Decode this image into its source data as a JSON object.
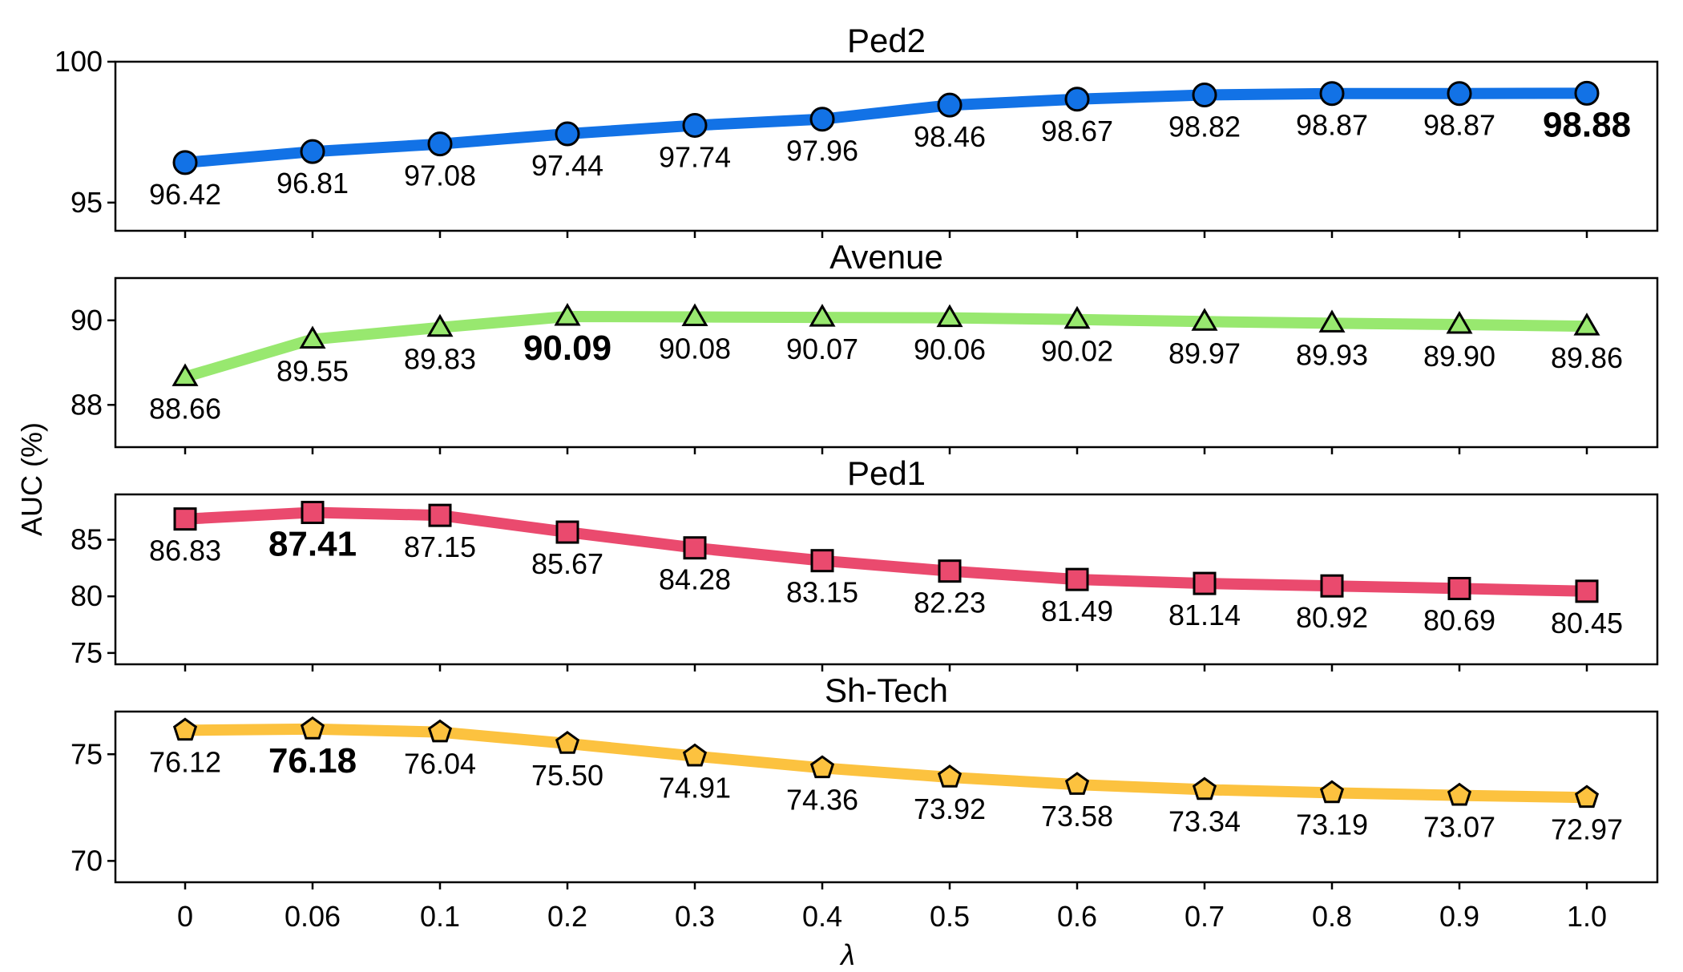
{
  "chart_data": {
    "type": "line",
    "xlabel": "λ",
    "ylabel": "AUC (%)",
    "x_tick_labels": [
      "0",
      "0.06",
      "0.1",
      "0.2",
      "0.3",
      "0.4",
      "0.5",
      "0.6",
      "0.7",
      "0.8",
      "0.9",
      "1.0"
    ],
    "panels": [
      {
        "title": "Ped2",
        "color": "#1272e6",
        "marker": "circle",
        "marker_color": "#1272e6",
        "ylim": [
          94,
          100
        ],
        "yticks": [
          95,
          100
        ],
        "values": [
          96.42,
          96.81,
          97.08,
          97.44,
          97.74,
          97.96,
          98.46,
          98.67,
          98.82,
          98.87,
          98.87,
          98.88
        ],
        "labels": [
          "96.42",
          "96.81",
          "97.08",
          "97.44",
          "97.74",
          "97.96",
          "98.46",
          "98.67",
          "98.82",
          "98.87",
          "98.87",
          "98.88"
        ],
        "best_index": 11
      },
      {
        "title": "Avenue",
        "color": "#98e86f",
        "marker": "triangle",
        "marker_color": "#98e86f",
        "ylim": [
          87,
          91
        ],
        "yticks": [
          88,
          90
        ],
        "values": [
          88.66,
          89.55,
          89.83,
          90.09,
          90.08,
          90.07,
          90.06,
          90.02,
          89.97,
          89.93,
          89.9,
          89.86
        ],
        "labels": [
          "88.66",
          "89.55",
          "89.83",
          "90.09",
          "90.08",
          "90.07",
          "90.06",
          "90.02",
          "89.97",
          "89.93",
          "89.90",
          "89.86"
        ],
        "best_index": 3
      },
      {
        "title": "Ped1",
        "color": "#ea4a6e",
        "marker": "square",
        "marker_color": "#ea4a6e",
        "ylim": [
          74,
          89
        ],
        "yticks": [
          75,
          80,
          85
        ],
        "values": [
          86.83,
          87.41,
          87.15,
          85.67,
          84.28,
          83.15,
          82.23,
          81.49,
          81.14,
          80.92,
          80.69,
          80.45
        ],
        "labels": [
          "86.83",
          "87.41",
          "87.15",
          "85.67",
          "84.28",
          "83.15",
          "82.23",
          "81.49",
          "81.14",
          "80.92",
          "80.69",
          "80.45"
        ],
        "best_index": 1
      },
      {
        "title": "Sh-Tech",
        "color": "#fcc23f",
        "marker": "pentagon",
        "marker_color": "#fcc23f",
        "ylim": [
          69,
          77
        ],
        "yticks": [
          70,
          75
        ],
        "values": [
          76.12,
          76.18,
          76.04,
          75.5,
          74.91,
          74.36,
          73.92,
          73.58,
          73.34,
          73.19,
          73.07,
          72.97
        ],
        "labels": [
          "76.12",
          "76.18",
          "76.04",
          "75.50",
          "74.91",
          "74.36",
          "73.92",
          "73.58",
          "73.34",
          "73.19",
          "73.07",
          "72.97"
        ],
        "best_index": 1
      }
    ]
  }
}
